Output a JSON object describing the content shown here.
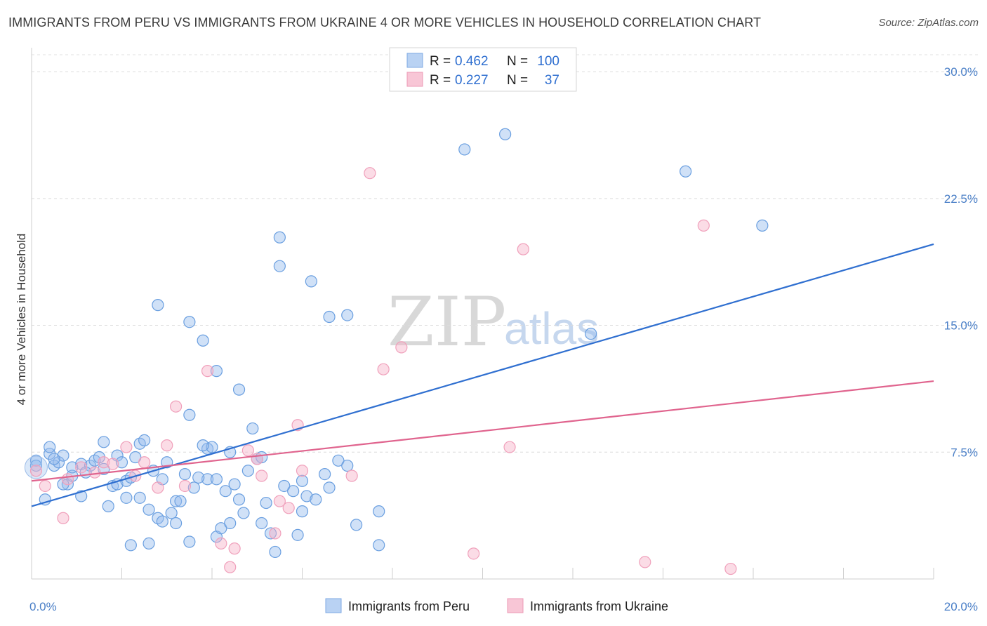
{
  "title": "IMMIGRANTS FROM PERU VS IMMIGRANTS FROM UKRAINE 4 OR MORE VEHICLES IN HOUSEHOLD CORRELATION CHART",
  "source": "Source: ZipAtlas.com",
  "watermark": {
    "zip": "ZIP",
    "atlas": "atlas"
  },
  "legend": {
    "rows": [
      {
        "r_label": "R =",
        "r_value": "0.462",
        "n_label": "N =",
        "n_value": "100"
      },
      {
        "r_label": "R =",
        "r_value": "0.227",
        "n_label": "N =",
        "n_value": "37"
      }
    ]
  },
  "chart_data": {
    "type": "scatter",
    "title": "IMMIGRANTS FROM PERU VS IMMIGRANTS FROM UKRAINE 4 OR MORE VEHICLES IN HOUSEHOLD CORRELATION CHART",
    "xlabel": "",
    "ylabel": "4 or more Vehicles in Household",
    "xlim": [
      0,
      20
    ],
    "ylim": [
      0,
      31
    ],
    "x_tick_labels": [
      {
        "value": 0,
        "label": "0.0%"
      },
      {
        "value": 20,
        "label": "20.0%"
      }
    ],
    "y_tick_labels": [
      {
        "value": 7.5,
        "label": "7.5%"
      },
      {
        "value": 15,
        "label": "15.0%"
      },
      {
        "value": 22.5,
        "label": "22.5%"
      },
      {
        "value": 30,
        "label": "30.0%"
      }
    ],
    "series": [
      {
        "name": "Immigrants from Peru",
        "color": "#6a9fe0",
        "line_color": "#2f6fd0",
        "R": 0.462,
        "N": 100,
        "trend": [
          [
            0,
            4.3
          ],
          [
            20,
            19.8
          ]
        ],
        "points": [
          [
            0.1,
            7.0
          ],
          [
            0.1,
            6.7
          ],
          [
            0.3,
            4.7
          ],
          [
            0.4,
            7.4
          ],
          [
            0.4,
            7.8
          ],
          [
            0.5,
            6.7
          ],
          [
            0.6,
            6.9
          ],
          [
            0.7,
            7.3
          ],
          [
            0.8,
            5.6
          ],
          [
            0.9,
            6.1
          ],
          [
            1.1,
            6.8
          ],
          [
            1.1,
            4.9
          ],
          [
            1.3,
            6.7
          ],
          [
            1.4,
            7.0
          ],
          [
            1.5,
            7.2
          ],
          [
            1.6,
            8.1
          ],
          [
            1.7,
            4.3
          ],
          [
            1.8,
            5.5
          ],
          [
            1.9,
            5.6
          ],
          [
            1.9,
            7.3
          ],
          [
            2.0,
            6.9
          ],
          [
            2.1,
            4.8
          ],
          [
            2.1,
            5.8
          ],
          [
            2.2,
            6.0
          ],
          [
            2.2,
            2.0
          ],
          [
            2.4,
            4.8
          ],
          [
            2.4,
            8.0
          ],
          [
            2.5,
            8.2
          ],
          [
            2.6,
            4.1
          ],
          [
            2.6,
            2.1
          ],
          [
            2.8,
            3.6
          ],
          [
            2.9,
            5.9
          ],
          [
            3.0,
            6.9
          ],
          [
            3.1,
            3.9
          ],
          [
            3.2,
            3.3
          ],
          [
            3.2,
            4.6
          ],
          [
            3.3,
            4.6
          ],
          [
            3.4,
            6.2
          ],
          [
            3.5,
            2.2
          ],
          [
            3.5,
            9.7
          ],
          [
            3.6,
            5.4
          ],
          [
            3.9,
            7.7
          ],
          [
            3.9,
            5.9
          ],
          [
            4.0,
            7.8
          ],
          [
            4.1,
            5.9
          ],
          [
            4.1,
            2.5
          ],
          [
            4.2,
            3.0
          ],
          [
            4.3,
            5.2
          ],
          [
            4.4,
            3.3
          ],
          [
            4.5,
            5.6
          ],
          [
            4.6,
            11.2
          ],
          [
            4.6,
            4.7
          ],
          [
            4.7,
            3.9
          ],
          [
            4.9,
            8.9
          ],
          [
            5.0,
            7.1
          ],
          [
            5.1,
            3.3
          ],
          [
            5.2,
            4.5
          ],
          [
            5.3,
            2.7
          ],
          [
            5.4,
            1.6
          ],
          [
            5.6,
            5.5
          ],
          [
            5.8,
            5.2
          ],
          [
            5.9,
            2.6
          ],
          [
            6.0,
            4.0
          ],
          [
            6.1,
            4.9
          ],
          [
            6.5,
            6.2
          ],
          [
            6.8,
            7.0
          ],
          [
            7.0,
            6.7
          ],
          [
            7.2,
            3.2
          ],
          [
            7.7,
            4.0
          ],
          [
            7.7,
            2.0
          ],
          [
            3.5,
            15.2
          ],
          [
            3.8,
            14.1
          ],
          [
            4.1,
            12.3
          ],
          [
            2.8,
            16.2
          ],
          [
            5.5,
            18.5
          ],
          [
            5.5,
            20.2
          ],
          [
            6.2,
            17.6
          ],
          [
            6.6,
            15.5
          ],
          [
            7.0,
            15.6
          ],
          [
            12.4,
            14.5
          ],
          [
            9.6,
            25.4
          ],
          [
            10.5,
            26.3
          ],
          [
            14.5,
            24.1
          ],
          [
            16.2,
            20.9
          ],
          [
            0.5,
            7.1
          ],
          [
            0.9,
            6.6
          ],
          [
            1.6,
            6.5
          ],
          [
            2.3,
            7.2
          ],
          [
            2.9,
            3.4
          ],
          [
            3.7,
            6.0
          ],
          [
            4.4,
            7.5
          ],
          [
            5.1,
            7.2
          ],
          [
            6.3,
            4.7
          ],
          [
            6.6,
            5.4
          ],
          [
            1.2,
            6.3
          ],
          [
            0.7,
            5.6
          ],
          [
            2.7,
            6.4
          ],
          [
            3.8,
            7.9
          ],
          [
            4.8,
            6.4
          ],
          [
            6.0,
            5.8
          ]
        ]
      },
      {
        "name": "Immigrants from Ukraine",
        "color": "#f0a0bb",
        "line_color": "#e0648e",
        "R": 0.227,
        "N": 37,
        "trend": [
          [
            0,
            5.8
          ],
          [
            20,
            11.7
          ]
        ],
        "points": [
          [
            0.1,
            6.4
          ],
          [
            0.3,
            5.5
          ],
          [
            0.7,
            3.6
          ],
          [
            0.8,
            5.9
          ],
          [
            1.1,
            6.6
          ],
          [
            1.4,
            6.3
          ],
          [
            1.6,
            6.9
          ],
          [
            1.8,
            6.8
          ],
          [
            2.1,
            7.8
          ],
          [
            2.3,
            6.1
          ],
          [
            2.5,
            6.9
          ],
          [
            2.8,
            5.4
          ],
          [
            3.0,
            7.9
          ],
          [
            3.2,
            10.2
          ],
          [
            3.4,
            5.5
          ],
          [
            3.9,
            12.3
          ],
          [
            4.2,
            2.1
          ],
          [
            4.4,
            0.7
          ],
          [
            4.5,
            1.8
          ],
          [
            4.8,
            7.6
          ],
          [
            5.0,
            7.1
          ],
          [
            5.1,
            6.1
          ],
          [
            5.4,
            2.7
          ],
          [
            5.5,
            4.6
          ],
          [
            5.7,
            4.2
          ],
          [
            5.9,
            9.1
          ],
          [
            6.0,
            6.4
          ],
          [
            7.1,
            6.1
          ],
          [
            7.8,
            12.4
          ],
          [
            8.2,
            13.7
          ],
          [
            9.8,
            1.5
          ],
          [
            10.6,
            7.8
          ],
          [
            10.9,
            19.5
          ],
          [
            13.6,
            1.0
          ],
          [
            14.9,
            20.9
          ],
          [
            15.5,
            0.6
          ],
          [
            7.5,
            24.0
          ]
        ]
      }
    ]
  },
  "bottom_legend": {
    "items": [
      {
        "label": "Immigrants from Peru"
      },
      {
        "label": "Immigrants from Ukraine"
      }
    ]
  }
}
